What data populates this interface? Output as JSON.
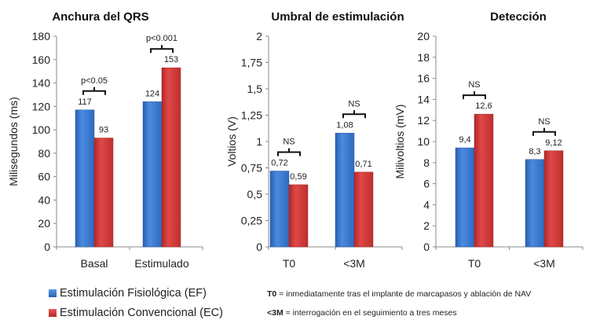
{
  "colors": {
    "ef": "#3a7bd5",
    "ec": "#d63a3a"
  },
  "legend": [
    {
      "label": "Estimulación Fisiológica (EF)",
      "color": "#3a7bd5"
    },
    {
      "label": "Estimulación Convencional (EC)",
      "color": "#d63a3a"
    }
  ],
  "notes": [
    {
      "key": "T0",
      "text": " = inmediatamente tras el implante de marcapasos y ablación de NAV"
    },
    {
      "key": "<3M",
      "text": " = interrogación en el seguimiento a tres meses"
    }
  ],
  "chart_data": [
    {
      "type": "bar",
      "title": "Anchura del QRS",
      "ylabel": "Milisegundos (ms)",
      "xlabel": "",
      "ylim": [
        0,
        180
      ],
      "yticks": [
        "0",
        "20",
        "40",
        "60",
        "80",
        "100",
        "120",
        "140",
        "160",
        "180"
      ],
      "categories": [
        "Basal",
        "Estimulado"
      ],
      "series": [
        {
          "name": "Estimulación Fisiológica (EF)",
          "values": [
            117,
            124
          ],
          "labels": [
            "117",
            "124"
          ]
        },
        {
          "name": "Estimulación Convencional (EC)",
          "values": [
            93,
            153
          ],
          "labels": [
            "93",
            "153"
          ]
        }
      ],
      "annotations": [
        "p<0.05",
        "p<0.001"
      ]
    },
    {
      "type": "bar",
      "title": "Umbral de estimulación",
      "ylabel": "Voltios (V)",
      "xlabel": "",
      "ylim": [
        0,
        2
      ],
      "yticks": [
        "0",
        "0,25",
        "0,5",
        "0,75",
        "1",
        "1,25",
        "1,5",
        "1,75",
        "2"
      ],
      "categories": [
        "T0",
        "<3M"
      ],
      "series": [
        {
          "name": "Estimulación Fisiológica (EF)",
          "values": [
            0.72,
            1.08
          ],
          "labels": [
            "0,72",
            "1,08"
          ]
        },
        {
          "name": "Estimulación Convencional (EC)",
          "values": [
            0.59,
            0.71
          ],
          "labels": [
            "0,59",
            "0,71"
          ]
        }
      ],
      "annotations": [
        "NS",
        "NS"
      ]
    },
    {
      "type": "bar",
      "title": "Detección",
      "ylabel": "Milivoltios (mV)",
      "xlabel": "",
      "ylim": [
        0,
        20
      ],
      "yticks": [
        "0",
        "2",
        "4",
        "6",
        "8",
        "10",
        "12",
        "14",
        "16",
        "18",
        "20"
      ],
      "categories": [
        "T0",
        "<3M"
      ],
      "series": [
        {
          "name": "Estimulación Fisiológica (EF)",
          "values": [
            9.4,
            8.3
          ],
          "labels": [
            "9,4",
            "8,3"
          ]
        },
        {
          "name": "Estimulación Convencional (EC)",
          "values": [
            12.6,
            9.12
          ],
          "labels": [
            "12,6",
            "9,12"
          ]
        }
      ],
      "annotations": [
        "NS",
        "NS"
      ]
    }
  ]
}
